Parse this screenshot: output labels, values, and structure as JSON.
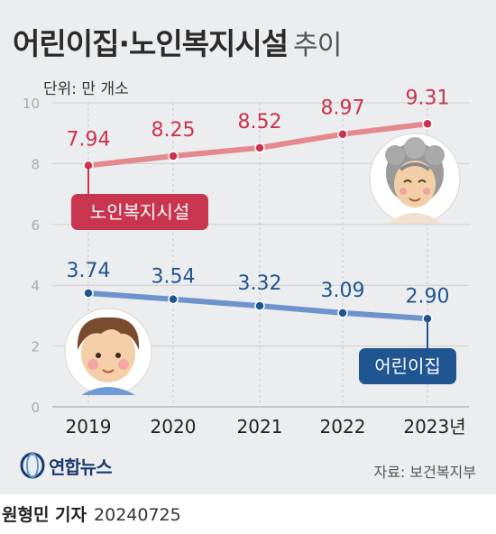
{
  "title": "어린이집·노인복지시설",
  "title_suffix": "추이",
  "unit": "단위: 만 개소",
  "source": "자료: 보건복지부",
  "logo_text": "연합뉴스",
  "reporter": "원형민 기자",
  "date": "20240725",
  "colors": {
    "elderly": "#c9344e",
    "elderly_line": "#e48a8f",
    "child": "#1f5591",
    "child_line": "#6d93cc"
  },
  "chart_data": {
    "type": "line",
    "categories": [
      "2019",
      "2020",
      "2021",
      "2022",
      "2023년"
    ],
    "ylim": [
      0,
      10
    ],
    "yticks": [
      0,
      2,
      4,
      6,
      8,
      10
    ],
    "grid": true,
    "series": [
      {
        "name": "노인복지시설",
        "values": [
          7.94,
          8.25,
          8.52,
          8.97,
          9.31
        ],
        "labels": [
          "7.94",
          "8.25",
          "8.52",
          "8.97",
          "9.31"
        ]
      },
      {
        "name": "어린이집",
        "values": [
          3.74,
          3.54,
          3.32,
          3.09,
          2.9
        ],
        "labels": [
          "3.74",
          "3.54",
          "3.32",
          "3.09",
          "2.90"
        ]
      }
    ]
  }
}
